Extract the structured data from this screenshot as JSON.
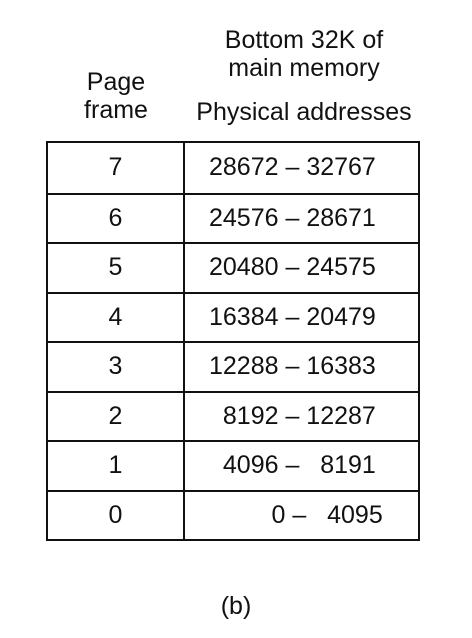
{
  "headers": {
    "page_frame_line1": "Page",
    "page_frame_line2": "frame",
    "memory_line1": "Bottom 32K of",
    "memory_line2": "main memory",
    "physical_addresses": "Physical addresses"
  },
  "rows": [
    {
      "frame": "7",
      "range": "28672 – 32767"
    },
    {
      "frame": "6",
      "range": "24576 – 28671"
    },
    {
      "frame": "5",
      "range": "20480 – 24575"
    },
    {
      "frame": "4",
      "range": "16384 – 20479"
    },
    {
      "frame": "3",
      "range": "12288 – 16383"
    },
    {
      "frame": "2",
      "range": "  8192 – 12287"
    },
    {
      "frame": "1",
      "range": "  4096 –   8191"
    },
    {
      "frame": "0",
      "range": "         0 –   4095"
    }
  ],
  "caption": "(b)"
}
